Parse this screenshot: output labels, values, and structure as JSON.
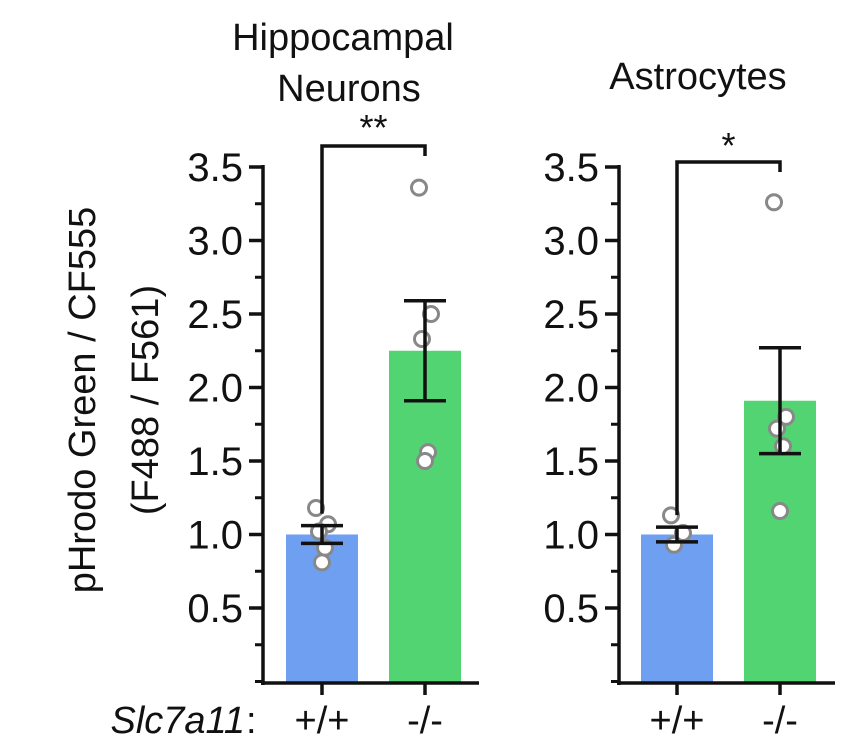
{
  "y_axis_label_line1": "pHrodo Green / CF555",
  "y_axis_label_line2": "(F488 / F561)",
  "genotype_label": "Slc7a11",
  "genotype_colon": ":",
  "colors": {
    "wt": "#6e9ff0",
    "ko": "#52d472",
    "points": "#888888",
    "axis": "#111111"
  },
  "chart_data": [
    {
      "type": "bar",
      "title_line1": "Hippocampal",
      "title_line2": "Neurons",
      "categories": [
        "+/+",
        "-/-"
      ],
      "values": [
        1.0,
        2.25
      ],
      "sem": [
        0.06,
        0.34
      ],
      "points": [
        [
          1.18,
          1.07,
          1.02,
          0.91,
          0.81
        ],
        [
          3.36,
          2.5,
          2.33,
          1.56,
          1.5
        ]
      ],
      "significance": "**",
      "ylim": [
        0.5,
        3.5
      ],
      "yticks": [
        "0.5",
        "1.0",
        "1.5",
        "2.0",
        "2.5",
        "3.0",
        "3.5"
      ]
    },
    {
      "type": "bar",
      "title_line1": "",
      "title_line2": "Astrocytes",
      "categories": [
        "+/+",
        "-/-"
      ],
      "values": [
        1.0,
        1.91
      ],
      "sem": [
        0.05,
        0.36
      ],
      "points": [
        [
          1.13,
          1.01,
          0.93
        ],
        [
          3.26,
          1.8,
          1.72,
          1.6,
          1.16
        ]
      ],
      "significance": "*",
      "ylim": [
        0.5,
        3.5
      ],
      "yticks": [
        "0.5",
        "1.0",
        "1.5",
        "2.0",
        "2.5",
        "3.0",
        "3.5"
      ]
    }
  ]
}
